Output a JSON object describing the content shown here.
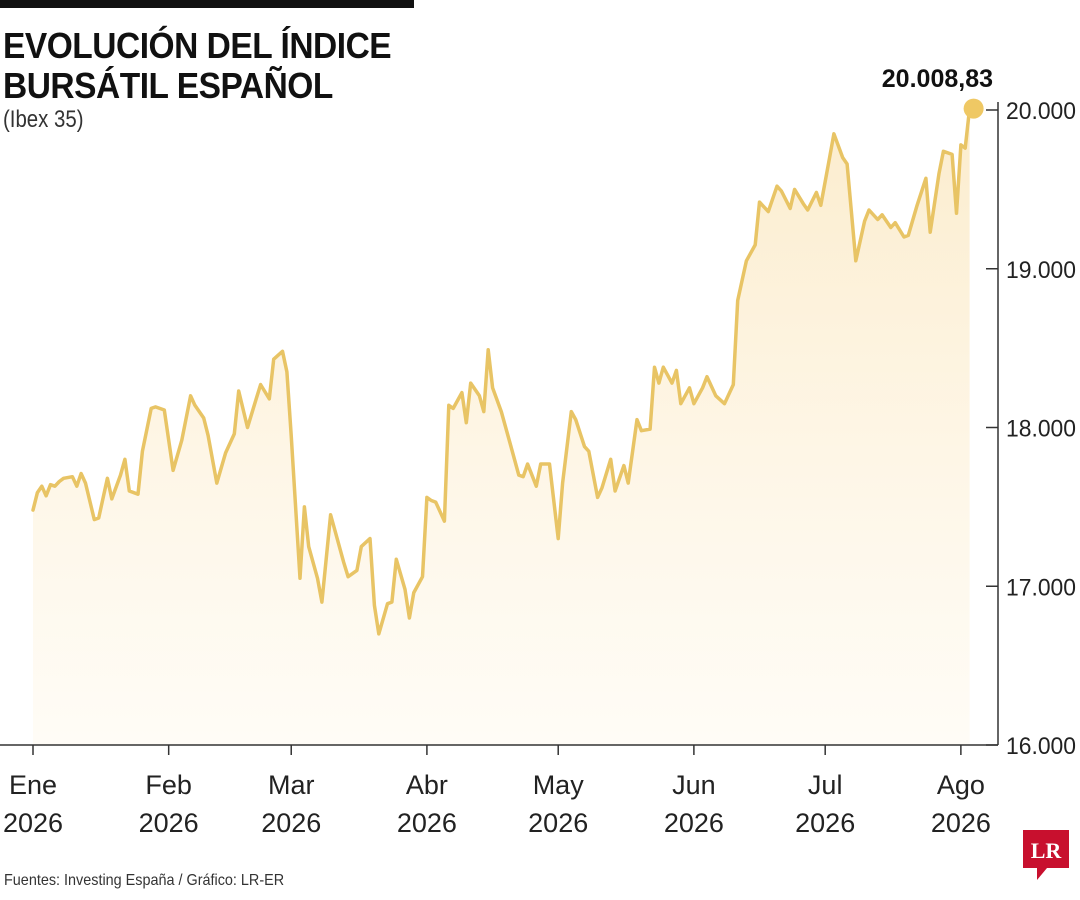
{
  "header": {
    "title_line1": "EVOLUCIÓN DEL ÍNDICE",
    "title_line2": "BURSÁTIL ESPAÑOL",
    "subtitle": "(Ibex 35)"
  },
  "footer": {
    "source": "Fuentes: Investing España / Gráfico: LR-ER",
    "logo_text": "LR"
  },
  "colors": {
    "line": "#e8c465",
    "area": "#fdf3de",
    "marker": "#efc864",
    "axis": "#333333",
    "logo_bg": "#c8102e"
  },
  "chart_data": {
    "type": "area",
    "title": "EVOLUCIÓN DEL ÍNDICE BURSÁTIL ESPAÑOL",
    "subtitle": "(Ibex 35)",
    "xlabel": "",
    "ylabel": "",
    "ylim": [
      16000,
      20000
    ],
    "yticks": [
      16000,
      17000,
      18000,
      19000,
      20000
    ],
    "ytick_labels": [
      "16.000",
      "17.000",
      "18.000",
      "19.000",
      "20.000"
    ],
    "y_axis_position": "right",
    "grid": false,
    "x_range": [
      "2026-01-01",
      "2026-08-04"
    ],
    "x_ticks": [
      {
        "date": "2026-01-01",
        "label": [
          "Ene",
          "2026"
        ]
      },
      {
        "date": "2026-02-01",
        "label": [
          "Feb",
          "2026"
        ]
      },
      {
        "date": "2026-03-01",
        "label": [
          "Mar",
          "2026"
        ]
      },
      {
        "date": "2026-04-01",
        "label": [
          "Abr",
          "2026"
        ]
      },
      {
        "date": "2026-05-01",
        "label": [
          "May",
          "2026"
        ]
      },
      {
        "date": "2026-06-01",
        "label": [
          "Jun",
          "2026"
        ]
      },
      {
        "date": "2026-07-01",
        "label": [
          "Jul",
          "2026"
        ]
      },
      {
        "date": "2026-08-01",
        "label": [
          "Ago",
          "2026"
        ]
      }
    ],
    "series": [
      {
        "points": [
          [
            "2026-01-01",
            17480
          ],
          [
            "2026-01-02",
            17590
          ],
          [
            "2026-01-03",
            17630
          ],
          [
            "2026-01-04",
            17570
          ],
          [
            "2026-01-05",
            17640
          ],
          [
            "2026-01-06",
            17630
          ],
          [
            "2026-01-07",
            17660
          ],
          [
            "2026-01-08",
            17680
          ],
          [
            "2026-01-10",
            17690
          ],
          [
            "2026-01-11",
            17630
          ],
          [
            "2026-01-12",
            17710
          ],
          [
            "2026-01-13",
            17650
          ],
          [
            "2026-01-15",
            17420
          ],
          [
            "2026-01-16",
            17430
          ],
          [
            "2026-01-18",
            17680
          ],
          [
            "2026-01-19",
            17550
          ],
          [
            "2026-01-21",
            17700
          ],
          [
            "2026-01-22",
            17800
          ],
          [
            "2026-01-23",
            17600
          ],
          [
            "2026-01-25",
            17580
          ],
          [
            "2026-01-26",
            17850
          ],
          [
            "2026-01-28",
            18120
          ],
          [
            "2026-01-29",
            18130
          ],
          [
            "2026-01-31",
            18110
          ],
          [
            "2026-02-02",
            17730
          ],
          [
            "2026-02-04",
            17920
          ],
          [
            "2026-02-06",
            18200
          ],
          [
            "2026-02-07",
            18140
          ],
          [
            "2026-02-09",
            18060
          ],
          [
            "2026-02-10",
            17950
          ],
          [
            "2026-02-12",
            17650
          ],
          [
            "2026-02-14",
            17840
          ],
          [
            "2026-02-16",
            17960
          ],
          [
            "2026-02-17",
            18230
          ],
          [
            "2026-02-19",
            18000
          ],
          [
            "2026-02-21",
            18180
          ],
          [
            "2026-02-22",
            18270
          ],
          [
            "2026-02-24",
            18180
          ],
          [
            "2026-02-25",
            18430
          ],
          [
            "2026-02-27",
            18480
          ],
          [
            "2026-02-28",
            18350
          ],
          [
            "2026-03-01",
            17950
          ],
          [
            "2026-03-03",
            17050
          ],
          [
            "2026-03-04",
            17500
          ],
          [
            "2026-03-05",
            17250
          ],
          [
            "2026-03-07",
            17050
          ],
          [
            "2026-03-08",
            16900
          ],
          [
            "2026-03-10",
            17450
          ],
          [
            "2026-03-11",
            17350
          ],
          [
            "2026-03-13",
            17150
          ],
          [
            "2026-03-14",
            17060
          ],
          [
            "2026-03-16",
            17100
          ],
          [
            "2026-03-17",
            17250
          ],
          [
            "2026-03-19",
            17300
          ],
          [
            "2026-03-20",
            16880
          ],
          [
            "2026-03-21",
            16700
          ],
          [
            "2026-03-23",
            16890
          ],
          [
            "2026-03-24",
            16900
          ],
          [
            "2026-03-25",
            17170
          ],
          [
            "2026-03-27",
            16980
          ],
          [
            "2026-03-28",
            16800
          ],
          [
            "2026-03-29",
            16960
          ],
          [
            "2026-03-31",
            17060
          ],
          [
            "2026-04-01",
            17560
          ],
          [
            "2026-04-02",
            17540
          ],
          [
            "2026-04-03",
            17530
          ],
          [
            "2026-04-05",
            17410
          ],
          [
            "2026-04-06",
            18140
          ],
          [
            "2026-04-07",
            18120
          ],
          [
            "2026-04-09",
            18220
          ],
          [
            "2026-04-10",
            18030
          ],
          [
            "2026-04-11",
            18280
          ],
          [
            "2026-04-13",
            18200
          ],
          [
            "2026-04-14",
            18100
          ],
          [
            "2026-04-15",
            18490
          ],
          [
            "2026-04-16",
            18250
          ],
          [
            "2026-04-18",
            18100
          ],
          [
            "2026-04-20",
            17900
          ],
          [
            "2026-04-22",
            17700
          ],
          [
            "2026-04-23",
            17690
          ],
          [
            "2026-04-24",
            17770
          ],
          [
            "2026-04-26",
            17630
          ],
          [
            "2026-04-27",
            17770
          ],
          [
            "2026-04-29",
            17770
          ],
          [
            "2026-05-01",
            17300
          ],
          [
            "2026-05-02",
            17650
          ],
          [
            "2026-05-04",
            18100
          ],
          [
            "2026-05-05",
            18050
          ],
          [
            "2026-05-07",
            17880
          ],
          [
            "2026-05-08",
            17850
          ],
          [
            "2026-05-10",
            17560
          ],
          [
            "2026-05-11",
            17620
          ],
          [
            "2026-05-13",
            17800
          ],
          [
            "2026-05-14",
            17600
          ],
          [
            "2026-05-16",
            17760
          ],
          [
            "2026-05-17",
            17650
          ],
          [
            "2026-05-19",
            18050
          ],
          [
            "2026-05-20",
            17980
          ],
          [
            "2026-05-22",
            17990
          ],
          [
            "2026-05-23",
            18380
          ],
          [
            "2026-05-24",
            18280
          ],
          [
            "2026-05-25",
            18380
          ],
          [
            "2026-05-27",
            18280
          ],
          [
            "2026-05-28",
            18360
          ],
          [
            "2026-05-29",
            18150
          ],
          [
            "2026-05-31",
            18250
          ],
          [
            "2026-06-01",
            18150
          ],
          [
            "2026-06-03",
            18250
          ],
          [
            "2026-06-04",
            18320
          ],
          [
            "2026-06-06",
            18200
          ],
          [
            "2026-06-08",
            18150
          ],
          [
            "2026-06-10",
            18270
          ],
          [
            "2026-06-11",
            18800
          ],
          [
            "2026-06-13",
            19050
          ],
          [
            "2026-06-15",
            19150
          ],
          [
            "2026-06-16",
            19420
          ],
          [
            "2026-06-18",
            19360
          ],
          [
            "2026-06-20",
            19520
          ],
          [
            "2026-06-21",
            19490
          ],
          [
            "2026-06-23",
            19380
          ],
          [
            "2026-06-24",
            19500
          ],
          [
            "2026-06-26",
            19410
          ],
          [
            "2026-06-27",
            19370
          ],
          [
            "2026-06-29",
            19480
          ],
          [
            "2026-06-30",
            19400
          ],
          [
            "2026-07-02",
            19700
          ],
          [
            "2026-07-03",
            19850
          ],
          [
            "2026-07-05",
            19700
          ],
          [
            "2026-07-06",
            19660
          ],
          [
            "2026-07-08",
            19050
          ],
          [
            "2026-07-10",
            19300
          ],
          [
            "2026-07-11",
            19370
          ],
          [
            "2026-07-13",
            19310
          ],
          [
            "2026-07-14",
            19340
          ],
          [
            "2026-07-16",
            19260
          ],
          [
            "2026-07-17",
            19290
          ],
          [
            "2026-07-19",
            19200
          ],
          [
            "2026-07-20",
            19210
          ],
          [
            "2026-07-22",
            19400
          ],
          [
            "2026-07-24",
            19570
          ],
          [
            "2026-07-25",
            19230
          ],
          [
            "2026-07-27",
            19600
          ],
          [
            "2026-07-28",
            19740
          ],
          [
            "2026-07-30",
            19720
          ],
          [
            "2026-07-31",
            19350
          ],
          [
            "2026-08-01",
            19780
          ],
          [
            "2026-08-02",
            19760
          ],
          [
            "2026-08-03",
            20008.83
          ]
        ]
      }
    ],
    "annotations": [
      {
        "date": "2026-08-03",
        "value": 20008.83,
        "text": "20.008,83"
      }
    ]
  }
}
